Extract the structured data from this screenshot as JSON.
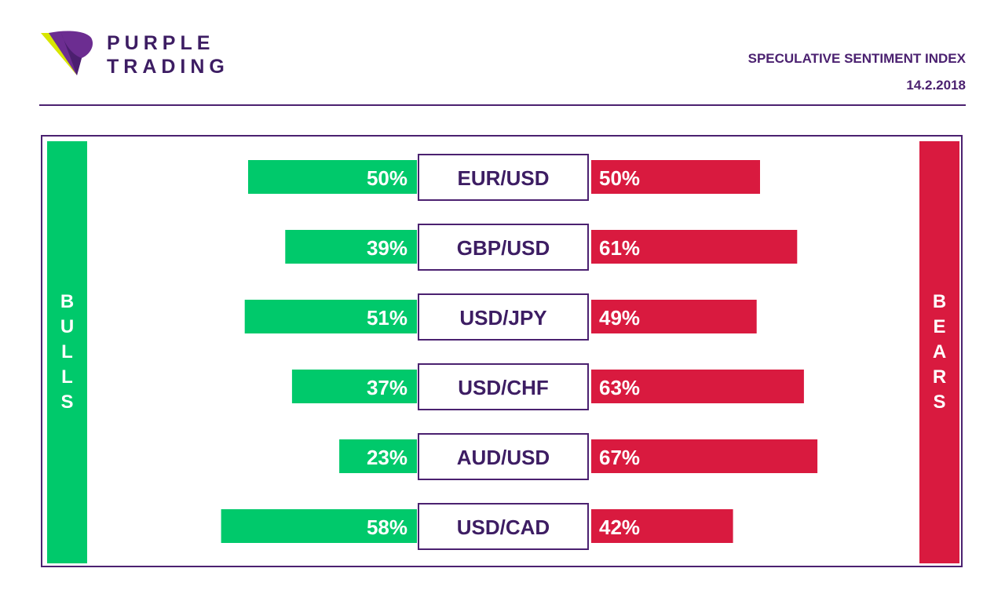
{
  "brand": {
    "line1": "PURPLE",
    "line2": "TRADING"
  },
  "header": {
    "title": "SPECULATIVE SENTIMENT INDEX",
    "date": "14.2.2018"
  },
  "sides": {
    "left": "BULLS",
    "right": "BEARS"
  },
  "colors": {
    "bulls": "#00c96b",
    "bears": "#d91a3f",
    "accent": "#4b2170",
    "logo_yellow": "#d8e600"
  },
  "chart_data": {
    "type": "bar",
    "categories": [
      "EUR/USD",
      "GBP/USD",
      "USD/JPY",
      "USD/CHF",
      "AUD/USD",
      "USD/CAD"
    ],
    "series": [
      {
        "name": "BULLS",
        "values": [
          50,
          39,
          51,
          37,
          23,
          58
        ]
      },
      {
        "name": "BEARS",
        "values": [
          50,
          61,
          49,
          63,
          67,
          42
        ]
      }
    ],
    "value_labels": {
      "bulls": [
        "50%",
        "39%",
        "51%",
        "37%",
        "23%",
        "58%"
      ],
      "bears": [
        "50%",
        "61%",
        "49%",
        "63%",
        "67%",
        "42%"
      ]
    },
    "unit": "%"
  }
}
